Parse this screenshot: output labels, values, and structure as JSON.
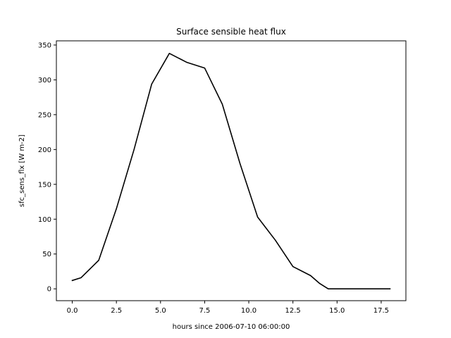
{
  "chart_data": {
    "type": "line",
    "title": "Surface sensible heat flux",
    "xlabel": "hours since 2006-07-10 06:00:00",
    "ylabel": "sfc_sens_flx [W m-2]",
    "xlim": [
      -0.9,
      18.9
    ],
    "ylim": [
      -17,
      356
    ],
    "xticks": [
      0.0,
      2.5,
      5.0,
      7.5,
      10.0,
      12.5,
      15.0,
      17.5
    ],
    "xtick_labels": [
      "0.0",
      "2.5",
      "5.0",
      "7.5",
      "10.0",
      "12.5",
      "15.0",
      "17.5"
    ],
    "yticks": [
      0,
      50,
      100,
      150,
      200,
      250,
      300,
      350
    ],
    "ytick_labels": [
      "0",
      "50",
      "100",
      "150",
      "200",
      "250",
      "300",
      "350"
    ],
    "grid": false,
    "series": [
      {
        "color": "#000000",
        "x": [
          0,
          0.5,
          1.5,
          2.5,
          3.5,
          4.5,
          5.5,
          6.5,
          7.5,
          8.5,
          9.5,
          10.5,
          11.5,
          12.5,
          13.5,
          14,
          14.5,
          15.5,
          16.5,
          17.5,
          18
        ],
        "y": [
          12,
          16,
          41,
          115,
          200,
          294,
          338,
          325,
          317,
          265,
          180,
          103,
          70,
          32,
          19,
          8,
          0,
          0,
          0,
          0,
          0
        ]
      }
    ]
  }
}
